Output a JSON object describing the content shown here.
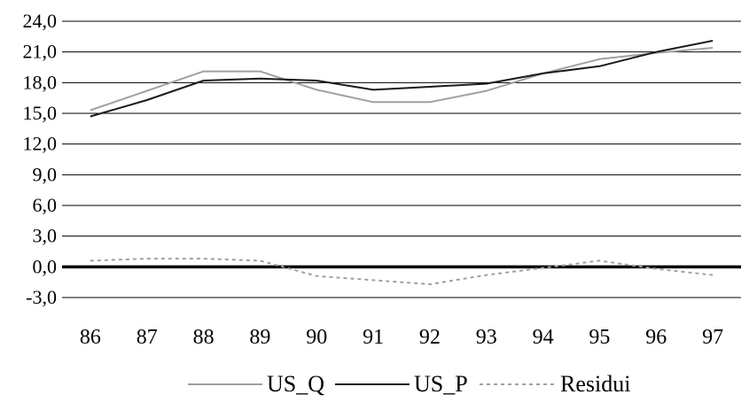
{
  "chart_data": {
    "type": "line",
    "x": [
      "86",
      "87",
      "88",
      "89",
      "90",
      "91",
      "92",
      "93",
      "94",
      "95",
      "96",
      "97"
    ],
    "yticks": [
      "-3,0",
      "0,0",
      "3,0",
      "6,0",
      "9,0",
      "12,0",
      "15,0",
      "18,0",
      "21,0",
      "24,0"
    ],
    "ylim": [
      -3,
      24
    ],
    "grid": true,
    "legend_position": "bottom",
    "series": [
      {
        "name": "US_Q",
        "color": "#a0a0a0",
        "style": "solid",
        "values": [
          15.3,
          17.2,
          19.1,
          19.1,
          17.3,
          16.1,
          16.1,
          17.2,
          18.9,
          20.3,
          20.9,
          21.4
        ]
      },
      {
        "name": "US_P",
        "color": "#1a1a1a",
        "style": "solid",
        "values": [
          14.7,
          16.3,
          18.2,
          18.4,
          18.2,
          17.3,
          17.6,
          17.9,
          18.9,
          19.6,
          21.0,
          22.1
        ]
      },
      {
        "name": "Residui",
        "color": "#a0a0a0",
        "style": "dashed",
        "values": [
          0.6,
          0.8,
          0.8,
          0.6,
          -0.9,
          -1.3,
          -1.7,
          -0.8,
          -0.1,
          0.6,
          -0.2,
          -0.8
        ]
      }
    ]
  }
}
